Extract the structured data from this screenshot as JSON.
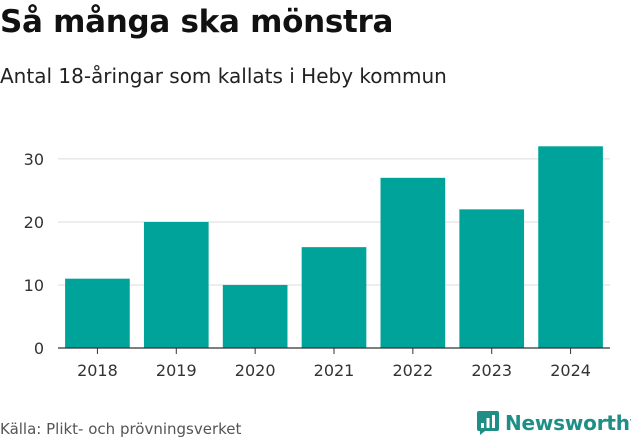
{
  "header": {
    "title": "Så många ska mönstra",
    "subtitle": "Antal 18-åringar som kallats i Heby kommun"
  },
  "footer": {
    "source": "Källa: Plikt- och prövningsverket",
    "brand": "Newsworthy",
    "brand_icon": "bar-chart-speech-bubble-icon"
  },
  "colors": {
    "bar": "#00a39a",
    "grid": "#dcdcdc",
    "axis": "#333333",
    "brand": "#1f8f86"
  },
  "chart_data": {
    "type": "bar",
    "categories": [
      "2018",
      "2019",
      "2020",
      "2021",
      "2022",
      "2023",
      "2024"
    ],
    "values": [
      11,
      20,
      10,
      16,
      27,
      22,
      32
    ],
    "yticks": [
      0,
      10,
      20,
      30
    ],
    "ylim": [
      0,
      33
    ],
    "grid": true,
    "legend": "none"
  }
}
